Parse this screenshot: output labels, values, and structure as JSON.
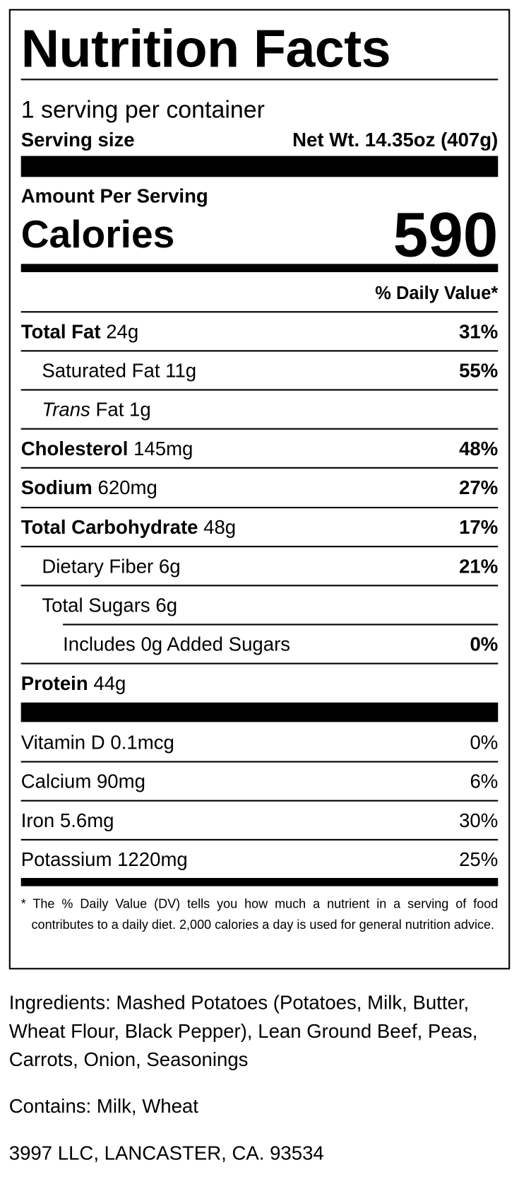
{
  "title": "Nutrition Facts",
  "servings_per_container": "1 serving per container",
  "serving_size_label": "Serving size",
  "serving_size_value": "Net Wt. 14.35oz (407g)",
  "amount_per_serving": "Amount Per Serving",
  "calories_label": "Calories",
  "calories_value": "590",
  "daily_value_header": "% Daily Value*",
  "nutrients": [
    {
      "name": "Total Fat",
      "amount": "24g",
      "dv": "31%"
    },
    {
      "name": "Saturated Fat",
      "amount": "11g",
      "dv": "55%"
    },
    {
      "name_italic": "Trans",
      "name": "Fat",
      "amount": "1g",
      "dv": ""
    },
    {
      "name": "Cholesterol",
      "amount": "145mg",
      "dv": "48%"
    },
    {
      "name": "Sodium",
      "amount": "620mg",
      "dv": "27%"
    },
    {
      "name": "Total Carbohydrate",
      "amount": "48g",
      "dv": "17%"
    },
    {
      "name": "Dietary Fiber",
      "amount": "6g",
      "dv": "21%"
    },
    {
      "name": "Total Sugars",
      "amount": "6g",
      "dv": ""
    },
    {
      "name": "Includes 0g Added Sugars",
      "amount": "",
      "dv": "0%"
    },
    {
      "name": "Protein",
      "amount": "44g",
      "dv": ""
    }
  ],
  "vitamins": [
    {
      "label": "Vitamin D 0.1mcg",
      "dv": "0%"
    },
    {
      "label": "Calcium 90mg",
      "dv": "6%"
    },
    {
      "label": "Iron 5.6mg",
      "dv": "30%"
    },
    {
      "label": "Potassium 1220mg",
      "dv": "25%"
    }
  ],
  "footnote": "* The % Daily Value (DV) tells you how much a nutrient in a serving of food contributes to a daily diet. 2,000 calories a day is used for general nutrition advice.",
  "ingredients": "Ingredients: Mashed Potatoes (Potatoes, Milk, Butter, Wheat Flour, Black Pepper), Lean Ground Beef, Peas, Carrots, Onion, Seasonings",
  "contains": "Contains: Milk, Wheat",
  "manufacturer": "3997 LLC, LANCASTER, CA. 93534"
}
